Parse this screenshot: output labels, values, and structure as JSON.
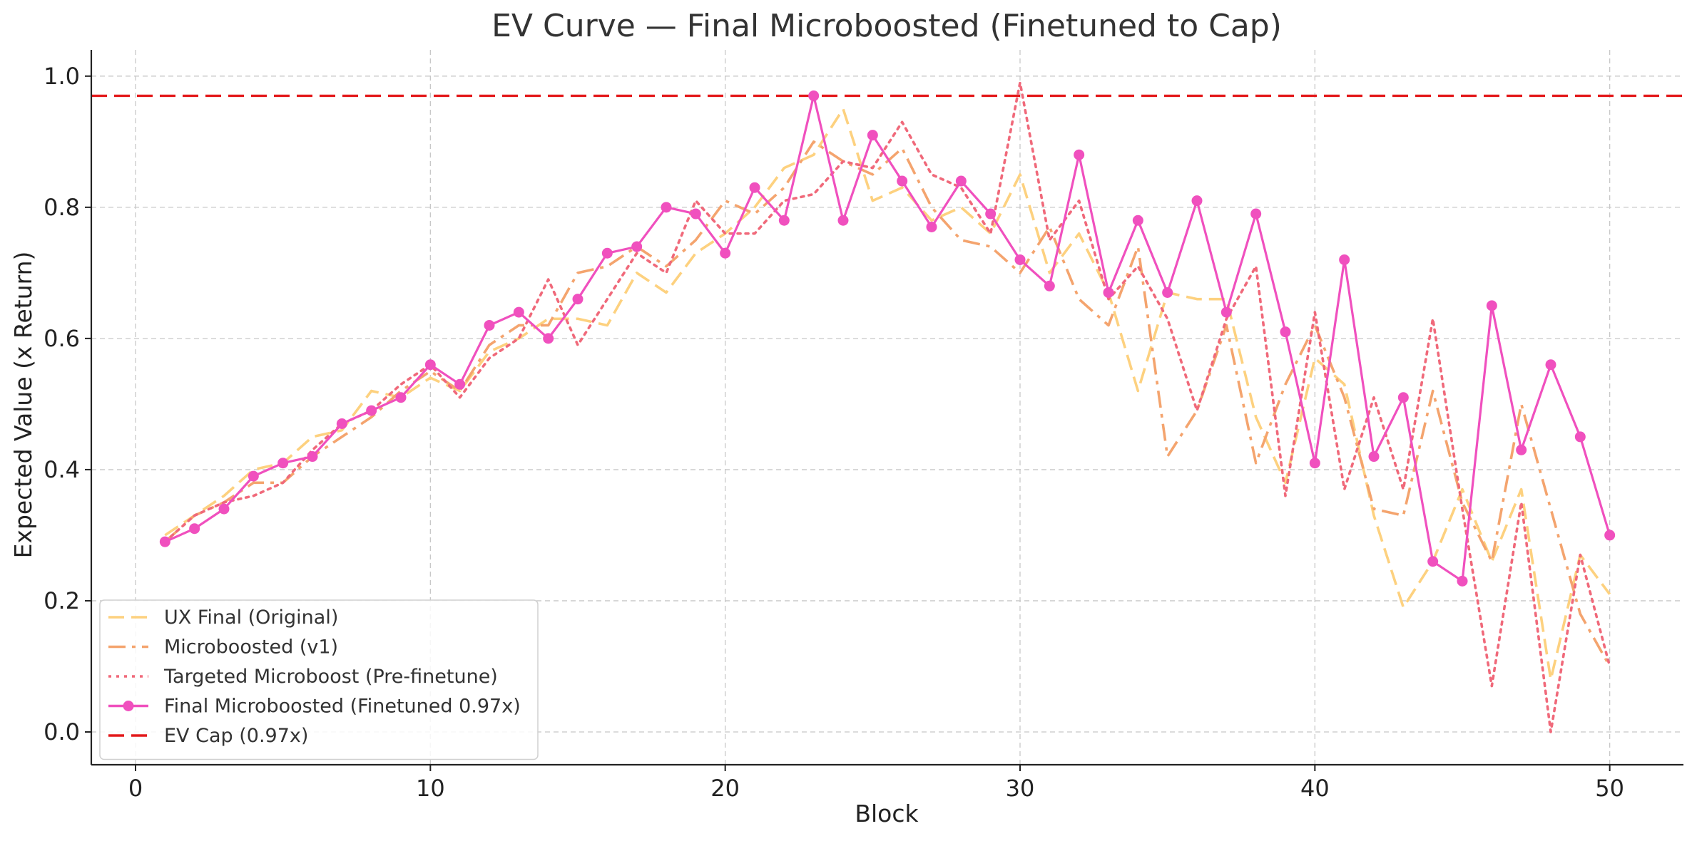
{
  "chart_data": {
    "type": "line",
    "title": "EV Curve — Final Microboosted (Finetuned to Cap)",
    "xlabel": "Block",
    "ylabel": "Expected Value (x Return)",
    "xlim": [
      -1.5,
      52.5
    ],
    "ylim": [
      -0.05,
      1.04
    ],
    "xticks": [
      0,
      10,
      20,
      30,
      40,
      50
    ],
    "yticks": [
      0.0,
      0.2,
      0.4,
      0.6,
      0.8,
      1.0
    ],
    "grid": true,
    "legend_position": "bottom-left",
    "x": [
      1,
      2,
      3,
      4,
      5,
      6,
      7,
      8,
      9,
      10,
      11,
      12,
      13,
      14,
      15,
      16,
      17,
      18,
      19,
      20,
      21,
      22,
      23,
      24,
      25,
      26,
      27,
      28,
      29,
      30,
      31,
      32,
      33,
      34,
      35,
      36,
      37,
      38,
      39,
      40,
      41,
      42,
      43,
      44,
      45,
      46,
      47,
      48,
      49,
      50
    ],
    "series": [
      {
        "name": "UX Final (Original)",
        "color": "#fdd17f",
        "dash": "dashed",
        "values": [
          0.3,
          0.33,
          0.36,
          0.4,
          0.41,
          0.45,
          0.46,
          0.52,
          0.51,
          0.54,
          0.52,
          0.58,
          0.6,
          0.63,
          0.63,
          0.62,
          0.7,
          0.67,
          0.73,
          0.76,
          0.8,
          0.86,
          0.88,
          0.95,
          0.81,
          0.83,
          0.78,
          0.8,
          0.76,
          0.85,
          0.7,
          0.76,
          0.67,
          0.52,
          0.67,
          0.66,
          0.66,
          0.48,
          0.38,
          0.57,
          0.53,
          0.33,
          0.19,
          0.26,
          0.37,
          0.26,
          0.37,
          0.08,
          0.27,
          0.21
        ]
      },
      {
        "name": "Microboosted (v1)",
        "color": "#f4a46e",
        "dash": "dashdot",
        "values": [
          0.29,
          0.33,
          0.35,
          0.38,
          0.38,
          0.42,
          0.45,
          0.48,
          0.52,
          0.55,
          0.52,
          0.59,
          0.62,
          0.62,
          0.7,
          0.71,
          0.74,
          0.71,
          0.75,
          0.81,
          0.79,
          0.83,
          0.9,
          0.87,
          0.85,
          0.89,
          0.8,
          0.75,
          0.74,
          0.7,
          0.77,
          0.66,
          0.62,
          0.74,
          0.42,
          0.49,
          0.62,
          0.41,
          0.53,
          0.62,
          0.51,
          0.34,
          0.33,
          0.52,
          0.35,
          0.26,
          0.5,
          0.34,
          0.18,
          0.1
        ]
      },
      {
        "name": "Targeted Microboost (Pre-finetune)",
        "color": "#f0697a",
        "dash": "dotted",
        "values": [
          0.29,
          0.33,
          0.35,
          0.36,
          0.38,
          0.43,
          0.47,
          0.49,
          0.53,
          0.56,
          0.51,
          0.57,
          0.6,
          0.69,
          0.59,
          0.66,
          0.73,
          0.7,
          0.81,
          0.76,
          0.76,
          0.81,
          0.82,
          0.87,
          0.86,
          0.93,
          0.85,
          0.83,
          0.76,
          0.99,
          0.75,
          0.81,
          0.66,
          0.71,
          0.63,
          0.49,
          0.63,
          0.71,
          0.36,
          0.64,
          0.37,
          0.51,
          0.37,
          0.63,
          0.34,
          0.07,
          0.35,
          0.0,
          0.27,
          0.1
        ]
      },
      {
        "name": "Final Microboosted (Finetuned 0.97x)",
        "color": "#f050be",
        "dash": "solid",
        "markers": true,
        "values": [
          0.29,
          0.31,
          0.34,
          0.39,
          0.41,
          0.42,
          0.47,
          0.49,
          0.51,
          0.56,
          0.53,
          0.62,
          0.64,
          0.6,
          0.66,
          0.73,
          0.74,
          0.8,
          0.79,
          0.73,
          0.83,
          0.78,
          0.97,
          0.78,
          0.91,
          0.84,
          0.77,
          0.84,
          0.79,
          0.72,
          0.68,
          0.88,
          0.67,
          0.78,
          0.67,
          0.81,
          0.64,
          0.79,
          0.61,
          0.41,
          0.72,
          0.42,
          0.51,
          0.26,
          0.23,
          0.65,
          0.43,
          0.56,
          0.45,
          0.3
        ]
      }
    ],
    "reference_lines": [
      {
        "name": "EV Cap (0.97x)",
        "y": 0.97,
        "color": "#e31a1c",
        "dash": "dashed"
      }
    ]
  }
}
